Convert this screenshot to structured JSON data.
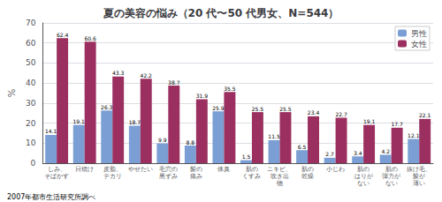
{
  "chart_data": {
    "type": "bar",
    "title": "夏の美容の悩み（20 代〜50 代男女、N=544）",
    "ylabel": "%",
    "footnote": "2007年都市生活研究所調べ",
    "categories": [
      "しみ、\nそばかす",
      "日焼け",
      "皮脂、\nテカリ",
      "やせたい",
      "毛穴の\n黒ずみ",
      "髪の\n痛み",
      "体臭",
      "肌の\nくすみ",
      "ニキビ、\n吹き出\n物",
      "肌の\n乾燥",
      "小じわ",
      "肌の\nはりが\nない",
      "肌の\n弾力が\nない",
      "抜け毛、\n髪が\n薄い"
    ],
    "series": [
      {
        "name": "男性",
        "color": "#7b9fd4",
        "values": [
          14.1,
          19.1,
          26.3,
          18.7,
          9.9,
          8.8,
          25.9,
          1.5,
          11.5,
          6.5,
          2.7,
          3.4,
          4.2,
          12.1
        ]
      },
      {
        "name": "女性",
        "color": "#9b3060",
        "values": [
          62.4,
          60.6,
          43.3,
          42.2,
          38.7,
          31.9,
          35.5,
          25.5,
          25.5,
          23.4,
          22.7,
          19.1,
          17.7,
          22.1
        ]
      }
    ],
    "ylim": [
      0,
      70
    ],
    "yticks": [
      0,
      10,
      20,
      30,
      40,
      50,
      60,
      70
    ],
    "grid": true,
    "legend": "upper right",
    "data_labels": true
  }
}
